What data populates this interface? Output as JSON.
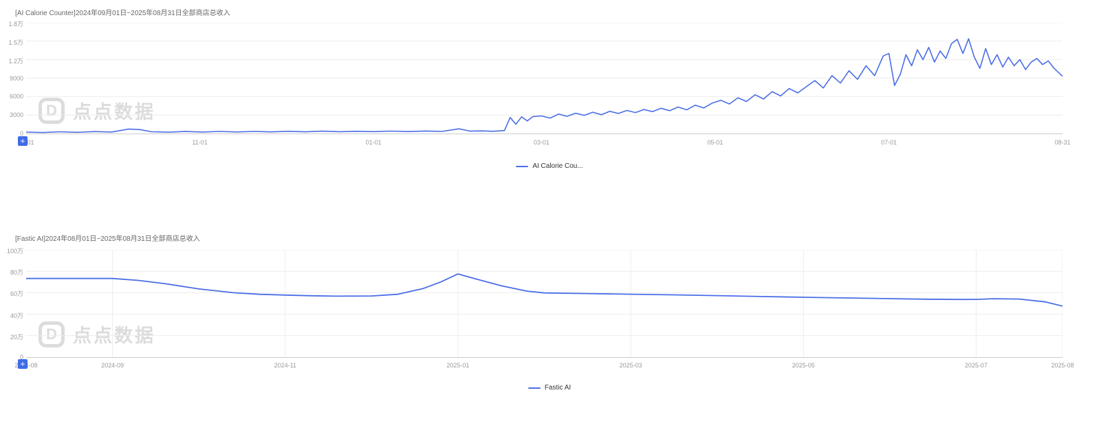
{
  "watermark": {
    "logo_letter": "D",
    "brand_text": "点点数据"
  },
  "controls": {
    "plus_button_label": "+"
  },
  "colors": {
    "line_blue": "#4a6de6",
    "plus_button_bg": "#3f6ce8",
    "grid": "#ececec",
    "axis": "#cccccc",
    "tick_text": "#999999",
    "title_text": "#666666",
    "watermark": "#dcdcdc"
  },
  "chart_data": [
    {
      "type": "line",
      "title": "[AI Calorie Counter]2024年09月01日~2025年08月31日全部商店总收入",
      "series_name": "AI Calorie Counter",
      "legend_label": "AI Calorie Cou...",
      "line_color": "#4a6de6",
      "line_width": 1.6,
      "ylim": [
        0,
        18000
      ],
      "y_ticks": [
        {
          "label": "1.8万",
          "v": 18000
        },
        {
          "label": "1.5万",
          "v": 15000
        },
        {
          "label": "1.2万",
          "v": 12000
        },
        {
          "label": "9000",
          "v": 9000
        },
        {
          "label": "6000",
          "v": 6000
        },
        {
          "label": "3000",
          "v": 3000
        },
        {
          "label": "0",
          "v": 0
        }
      ],
      "x_unit": "days_from_2024-09-01",
      "x_max": 364,
      "x_ticks": [
        {
          "label": "09-01",
          "x": 0
        },
        {
          "label": "11-01",
          "x": 61
        },
        {
          "label": "01-01",
          "x": 122
        },
        {
          "label": "03-01",
          "x": 181
        },
        {
          "label": "05-01",
          "x": 242
        },
        {
          "label": "07-01",
          "x": 303
        },
        {
          "label": "08-31",
          "x": 364
        }
      ],
      "vertical_grid": false,
      "points": [
        [
          0,
          220
        ],
        [
          6,
          160
        ],
        [
          12,
          280
        ],
        [
          18,
          190
        ],
        [
          24,
          310
        ],
        [
          30,
          230
        ],
        [
          36,
          720
        ],
        [
          40,
          640
        ],
        [
          44,
          280
        ],
        [
          50,
          210
        ],
        [
          56,
          320
        ],
        [
          62,
          240
        ],
        [
          68,
          330
        ],
        [
          74,
          250
        ],
        [
          80,
          340
        ],
        [
          86,
          260
        ],
        [
          92,
          360
        ],
        [
          98,
          270
        ],
        [
          104,
          380
        ],
        [
          110,
          290
        ],
        [
          116,
          360
        ],
        [
          122,
          300
        ],
        [
          128,
          390
        ],
        [
          134,
          310
        ],
        [
          140,
          400
        ],
        [
          146,
          330
        ],
        [
          152,
          760
        ],
        [
          156,
          380
        ],
        [
          160,
          430
        ],
        [
          164,
          360
        ],
        [
          168,
          480
        ],
        [
          170,
          2600
        ],
        [
          172,
          1500
        ],
        [
          174,
          2700
        ],
        [
          176,
          2050
        ],
        [
          178,
          2750
        ],
        [
          181,
          2850
        ],
        [
          184,
          2500
        ],
        [
          187,
          3150
        ],
        [
          190,
          2800
        ],
        [
          193,
          3300
        ],
        [
          196,
          2950
        ],
        [
          199,
          3450
        ],
        [
          202,
          3050
        ],
        [
          205,
          3600
        ],
        [
          208,
          3250
        ],
        [
          211,
          3750
        ],
        [
          214,
          3400
        ],
        [
          217,
          3900
        ],
        [
          220,
          3550
        ],
        [
          223,
          4100
        ],
        [
          226,
          3700
        ],
        [
          229,
          4300
        ],
        [
          232,
          3850
        ],
        [
          235,
          4600
        ],
        [
          238,
          4150
        ],
        [
          241,
          4950
        ],
        [
          244,
          5400
        ],
        [
          247,
          4800
        ],
        [
          250,
          5800
        ],
        [
          253,
          5200
        ],
        [
          256,
          6300
        ],
        [
          259,
          5600
        ],
        [
          262,
          6800
        ],
        [
          265,
          6100
        ],
        [
          268,
          7300
        ],
        [
          271,
          6600
        ],
        [
          274,
          7600
        ],
        [
          277,
          8600
        ],
        [
          280,
          7400
        ],
        [
          283,
          9400
        ],
        [
          286,
          8200
        ],
        [
          289,
          10200
        ],
        [
          292,
          8800
        ],
        [
          295,
          11000
        ],
        [
          298,
          9400
        ],
        [
          301,
          12600
        ],
        [
          303,
          13000
        ],
        [
          305,
          7800
        ],
        [
          307,
          9600
        ],
        [
          309,
          12800
        ],
        [
          311,
          11000
        ],
        [
          313,
          13600
        ],
        [
          315,
          12000
        ],
        [
          317,
          14000
        ],
        [
          319,
          11600
        ],
        [
          321,
          13400
        ],
        [
          323,
          12200
        ],
        [
          325,
          14600
        ],
        [
          327,
          15300
        ],
        [
          329,
          13000
        ],
        [
          331,
          15400
        ],
        [
          333,
          12400
        ],
        [
          335,
          10600
        ],
        [
          337,
          13800
        ],
        [
          339,
          11200
        ],
        [
          341,
          12800
        ],
        [
          343,
          10800
        ],
        [
          345,
          12400
        ],
        [
          347,
          11000
        ],
        [
          349,
          12000
        ],
        [
          351,
          10400
        ],
        [
          353,
          11600
        ],
        [
          355,
          12200
        ],
        [
          357,
          11200
        ],
        [
          359,
          11800
        ],
        [
          361,
          10600
        ],
        [
          364,
          9300
        ]
      ]
    },
    {
      "type": "line",
      "title": "[Fastic AI]2024年08月01日~2025年08月31日全部商店总收入",
      "series_name": "Fastic AI",
      "legend_label": "Fastic AI",
      "line_color": "#4a6de6",
      "line_width": 1.8,
      "y_unit": "万",
      "ylim": [
        0,
        100
      ],
      "y_ticks": [
        {
          "label": "100万",
          "v": 100
        },
        {
          "label": "80万",
          "v": 80
        },
        {
          "label": "60万",
          "v": 60
        },
        {
          "label": "40万",
          "v": 40
        },
        {
          "label": "20万",
          "v": 20
        },
        {
          "label": "0",
          "v": 0
        }
      ],
      "x_unit": "months_from_2024-08",
      "x_max": 12,
      "x_ticks": [
        {
          "label": "2024-08",
          "x": 0
        },
        {
          "label": "2024-09",
          "x": 1
        },
        {
          "label": "2024-11",
          "x": 3
        },
        {
          "label": "2025-01",
          "x": 5
        },
        {
          "label": "2025-03",
          "x": 7
        },
        {
          "label": "2025-05",
          "x": 9
        },
        {
          "label": "2025-07",
          "x": 11
        },
        {
          "label": "2025-08",
          "x": 12
        }
      ],
      "vertical_grid": true,
      "points": [
        [
          0,
          73.3
        ],
        [
          0.5,
          73.3
        ],
        [
          1,
          73.3
        ],
        [
          1.3,
          71.5
        ],
        [
          1.6,
          68.5
        ],
        [
          2,
          63.5
        ],
        [
          2.4,
          60
        ],
        [
          2.7,
          58.5
        ],
        [
          3,
          57.8
        ],
        [
          3.3,
          57.2
        ],
        [
          3.6,
          56.8
        ],
        [
          4,
          57
        ],
        [
          4.3,
          58.5
        ],
        [
          4.6,
          64
        ],
        [
          4.8,
          70
        ],
        [
          5,
          77.5
        ],
        [
          5.2,
          73
        ],
        [
          5.5,
          66.5
        ],
        [
          5.8,
          61.5
        ],
        [
          6,
          59.8
        ],
        [
          6.5,
          59.2
        ],
        [
          7,
          58.6
        ],
        [
          7.5,
          58
        ],
        [
          8,
          57.3
        ],
        [
          8.5,
          56.5
        ],
        [
          9,
          55.8
        ],
        [
          9.5,
          55.1
        ],
        [
          10,
          54.5
        ],
        [
          10.4,
          54
        ],
        [
          10.8,
          53.7
        ],
        [
          11,
          53.8
        ],
        [
          11.2,
          54.4
        ],
        [
          11.5,
          54.1
        ],
        [
          11.8,
          51.5
        ],
        [
          12,
          47.5
        ]
      ]
    }
  ]
}
